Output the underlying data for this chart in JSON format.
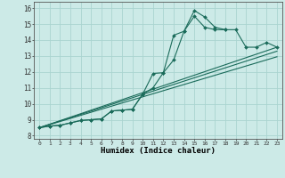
{
  "xlabel": "Humidex (Indice chaleur)",
  "ylabel": "",
  "bg_color": "#cceae7",
  "grid_color": "#aad4d0",
  "line_color": "#1a6b5a",
  "xlim": [
    -0.5,
    23.5
  ],
  "ylim": [
    7.8,
    16.4
  ],
  "xticks": [
    0,
    1,
    2,
    3,
    4,
    5,
    6,
    7,
    8,
    9,
    10,
    11,
    12,
    13,
    14,
    15,
    16,
    17,
    18,
    19,
    20,
    21,
    22,
    23
  ],
  "yticks": [
    8,
    9,
    10,
    11,
    12,
    13,
    14,
    15,
    16
  ],
  "lines": [
    {
      "x": [
        0,
        1,
        2,
        3,
        4,
        5,
        6,
        7,
        8,
        9,
        10,
        11,
        12,
        13,
        14,
        15,
        16,
        17,
        18,
        19,
        20,
        21,
        22,
        23
      ],
      "y": [
        8.5,
        8.6,
        8.65,
        8.8,
        8.95,
        9.0,
        9.05,
        9.55,
        9.6,
        9.65,
        10.6,
        11.9,
        11.95,
        14.3,
        14.55,
        15.85,
        15.45,
        14.8,
        14.65,
        14.65,
        13.55,
        13.55,
        13.85,
        13.55
      ],
      "marker": "D",
      "markersize": 2.0
    },
    {
      "x": [
        0,
        1,
        2,
        3,
        4,
        5,
        6,
        7,
        8,
        9,
        10,
        11,
        12,
        13,
        14,
        15,
        16,
        17,
        18
      ],
      "y": [
        8.5,
        8.6,
        8.65,
        8.8,
        8.95,
        9.0,
        9.05,
        9.55,
        9.6,
        9.65,
        10.6,
        11.0,
        11.95,
        12.75,
        14.55,
        15.5,
        14.8,
        14.65,
        14.65
      ],
      "marker": "D",
      "markersize": 2.0
    },
    {
      "x": [
        0,
        23
      ],
      "y": [
        8.5,
        13.55
      ],
      "marker": null,
      "markersize": 0
    },
    {
      "x": [
        0,
        23
      ],
      "y": [
        8.5,
        13.3
      ],
      "marker": null,
      "markersize": 0
    },
    {
      "x": [
        0,
        23
      ],
      "y": [
        8.5,
        12.95
      ],
      "marker": null,
      "markersize": 0
    }
  ]
}
